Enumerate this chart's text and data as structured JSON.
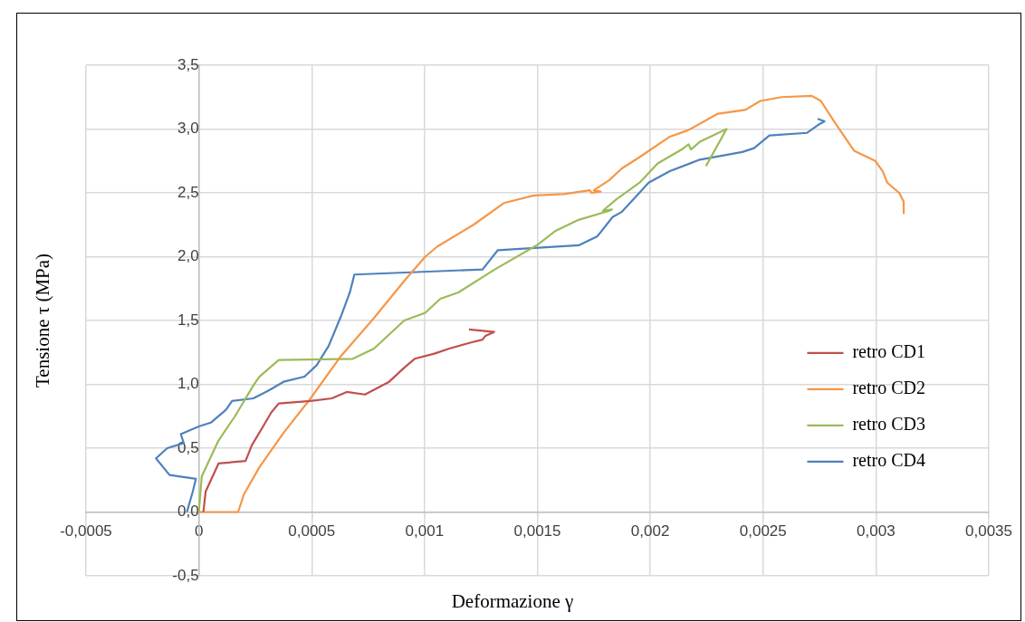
{
  "chart_data": {
    "type": "line",
    "xlabel": "Deformazione γ",
    "ylabel": "Tensione τ (MPa)",
    "xlim": [
      -0.0005,
      0.0035
    ],
    "ylim": [
      -0.5,
      3.5
    ],
    "xticks": [
      {
        "value": -0.0005,
        "label": "-0,0005"
      },
      {
        "value": 0,
        "label": "0"
      },
      {
        "value": 0.0005,
        "label": "0,0005"
      },
      {
        "value": 0.001,
        "label": "0,001"
      },
      {
        "value": 0.0015,
        "label": "0,0015"
      },
      {
        "value": 0.002,
        "label": "0,002"
      },
      {
        "value": 0.0025,
        "label": "0,0025"
      },
      {
        "value": 0.003,
        "label": "0,003"
      },
      {
        "value": 0.0035,
        "label": "0,0035"
      }
    ],
    "yticks": [
      {
        "value": -0.5,
        "label": "-0,5"
      },
      {
        "value": 0,
        "label": "0,0"
      },
      {
        "value": 0.5,
        "label": "0,5"
      },
      {
        "value": 1,
        "label": "1,0"
      },
      {
        "value": 1.5,
        "label": "1,5"
      },
      {
        "value": 2,
        "label": "2,0"
      },
      {
        "value": 2.5,
        "label": "2,5"
      },
      {
        "value": 3,
        "label": "3,0"
      },
      {
        "value": 3.5,
        "label": "3,5"
      }
    ],
    "grid": true,
    "legend": "right",
    "series": [
      {
        "name": "retro CD1",
        "color": "#c0504d",
        "x": [
          2e-05,
          3e-05,
          8.7e-05,
          0.000207,
          0.000234,
          0.000281,
          0.000321,
          0.000354,
          0.000495,
          0.000589,
          0.000655,
          0.000736,
          0.000843,
          0.00091,
          0.000956,
          0.001043,
          0.00111,
          0.00121,
          0.001257,
          0.00127,
          0.001308,
          0.001197
        ],
        "values": [
          0,
          0.16,
          0.38,
          0.4,
          0.52,
          0.66,
          0.78,
          0.85,
          0.87,
          0.89,
          0.94,
          0.92,
          1.02,
          1.13,
          1.2,
          1.24,
          1.28,
          1.33,
          1.35,
          1.38,
          1.41,
          1.43
        ]
      },
      {
        "name": "retro CD2",
        "color": "#f79646",
        "x": [
          0,
          0.000174,
          0.0002,
          0.000268,
          0.000375,
          0.000495,
          0.000629,
          0.000776,
          0.00091,
          0.001003,
          0.001057,
          0.001217,
          0.001351,
          0.001485,
          0.001618,
          0.001732,
          0.00174,
          0.00178,
          0.00175,
          0.001819,
          0.001873,
          0.001953,
          0.002087,
          0.002167,
          0.0023,
          0.002421,
          0.002488,
          0.002582,
          0.002716,
          0.002756,
          0.002822,
          0.002903,
          0.002997,
          0.00303,
          0.00305,
          0.003103,
          0.003123,
          0.003123
        ],
        "values": [
          0,
          0,
          0.14,
          0.35,
          0.62,
          0.89,
          1.22,
          1.52,
          1.81,
          2.0,
          2.08,
          2.25,
          2.42,
          2.48,
          2.49,
          2.52,
          2.5,
          2.51,
          2.52,
          2.6,
          2.69,
          2.78,
          2.94,
          2.99,
          3.12,
          3.15,
          3.22,
          3.25,
          3.26,
          3.22,
          3.04,
          2.83,
          2.75,
          2.67,
          2.58,
          2.5,
          2.43,
          2.34
        ]
      },
      {
        "name": "retro CD3",
        "color": "#9bbb59",
        "x": [
          0,
          1.3e-05,
          8.7e-05,
          0.00016,
          0.000241,
          0.000268,
          0.000354,
          0.000682,
          0.000776,
          0.00091,
          0.001003,
          0.00107,
          0.00115,
          0.001311,
          0.001498,
          0.001578,
          0.001685,
          0.00182,
          0.00183,
          0.00179,
          0.00185,
          0.001953,
          0.002033,
          0.00214,
          0.00217,
          0.00218,
          0.00222,
          0.002338,
          0.002247
        ],
        "values": [
          0,
          0.28,
          0.56,
          0.75,
          0.99,
          1.06,
          1.19,
          1.2,
          1.28,
          1.5,
          1.56,
          1.67,
          1.72,
          1.9,
          2.09,
          2.2,
          2.29,
          2.36,
          2.37,
          2.36,
          2.45,
          2.58,
          2.73,
          2.84,
          2.88,
          2.84,
          2.9,
          3.0,
          2.71
        ]
      },
      {
        "name": "retro CD4",
        "color": "#4f81bd",
        "x": [
          -5.3e-05,
          -2.7e-05,
          -1.3e-05,
          -0.00013,
          -0.00019,
          -0.00014,
          -6.7e-05,
          -8e-05,
          0,
          5.3e-05,
          0.00012,
          0.000147,
          0.000241,
          0.000308,
          0.000375,
          0.000468,
          0.000522,
          0.000575,
          0.000629,
          0.000669,
          0.000689,
          0.001257,
          0.001324,
          0.001685,
          0.001766,
          0.001833,
          0.001873,
          0.001926,
          0.001993,
          0.002087,
          0.00222,
          0.002408,
          0.00246,
          0.002528,
          0.002695,
          0.002742,
          0.002772,
          0.002742
        ],
        "values": [
          0,
          0.16,
          0.26,
          0.29,
          0.42,
          0.5,
          0.54,
          0.61,
          0.67,
          0.7,
          0.8,
          0.87,
          0.89,
          0.95,
          1.02,
          1.06,
          1.15,
          1.3,
          1.53,
          1.72,
          1.86,
          1.9,
          2.05,
          2.09,
          2.16,
          2.31,
          2.35,
          2.45,
          2.58,
          2.67,
          2.76,
          2.82,
          2.85,
          2.95,
          2.97,
          3.03,
          3.06,
          3.08
        ]
      }
    ]
  }
}
